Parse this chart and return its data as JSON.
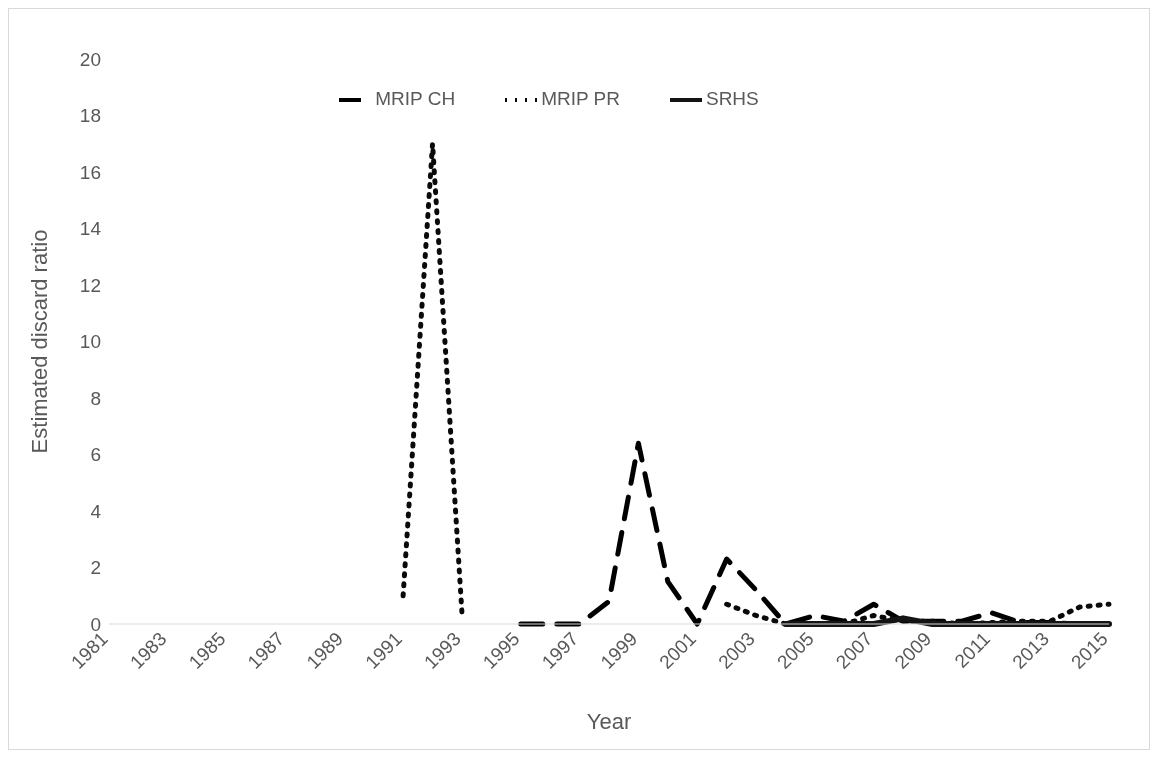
{
  "chart_data": {
    "type": "line",
    "xlabel": "Year",
    "ylabel": "Estimated discard ratio",
    "categories": [
      "1981",
      null,
      "1983",
      null,
      "1985",
      null,
      "1987",
      null,
      "1989",
      null,
      "1991",
      null,
      "1993",
      null,
      "1995",
      null,
      "1997",
      null,
      "1999",
      null,
      "2001",
      null,
      "2003",
      null,
      "2005",
      null,
      "2007",
      null,
      "2009",
      null,
      "2011",
      null,
      "2013",
      null,
      "2015"
    ],
    "series": [
      {
        "name": "MRIP CH",
        "color": "#000000",
        "line_style": "dashed",
        "values": [
          null,
          null,
          null,
          null,
          null,
          null,
          null,
          null,
          null,
          null,
          null,
          null,
          null,
          null,
          0,
          0,
          0,
          0.8,
          6.4,
          1.5,
          0,
          2.3,
          1.2,
          0,
          0.3,
          0.1,
          0.7,
          0.1,
          0.1,
          0.1,
          0.4,
          0.05,
          0.05,
          0,
          0
        ]
      },
      {
        "name": "MRIP PR",
        "color": "#0a0a0a",
        "line_style": "dotted",
        "values": [
          null,
          null,
          null,
          null,
          null,
          null,
          null,
          null,
          null,
          null,
          1,
          17,
          0.4,
          null,
          null,
          null,
          null,
          null,
          null,
          null,
          null,
          0.7,
          0.3,
          0,
          0,
          0,
          0.3,
          0.1,
          0.1,
          0,
          0.05,
          0.1,
          0.1,
          0.6,
          0.7
        ]
      },
      {
        "name": "SRHS",
        "color": "#141414",
        "line_style": "solid",
        "values": [
          null,
          null,
          null,
          null,
          null,
          null,
          null,
          null,
          null,
          null,
          null,
          null,
          null,
          null,
          null,
          null,
          null,
          null,
          null,
          null,
          null,
          null,
          null,
          0,
          0,
          0,
          0,
          0.2,
          0,
          0,
          0,
          0,
          0,
          0,
          0
        ]
      }
    ],
    "ylim": [
      0,
      20
    ],
    "yticks": [
      0,
      2,
      4,
      6,
      8,
      10,
      12,
      14,
      16,
      18,
      20
    ],
    "grid": false,
    "legend": "top",
    "marker": "none"
  }
}
